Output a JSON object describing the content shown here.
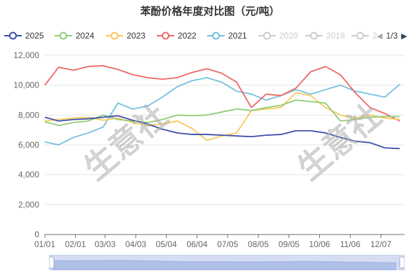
{
  "chart_data": {
    "type": "line",
    "title": "苯酚价格年度对比图（元/吨）",
    "xlabel": "",
    "ylabel": "",
    "ylim": [
      0,
      12000
    ],
    "yticks": [
      "0",
      "2,000",
      "4,000",
      "6,000",
      "8,000",
      "10,000",
      "12,000"
    ],
    "xticks": [
      "01/01",
      "02/01",
      "03/03",
      "04/03",
      "05/04",
      "06/04",
      "07/05",
      "08/05",
      "09/05",
      "10/06",
      "11/06",
      "12/07"
    ],
    "grid": true,
    "legend_position": "top",
    "x": [
      1,
      15,
      30,
      45,
      60,
      75,
      90,
      105,
      120,
      135,
      150,
      165,
      180,
      195,
      210,
      225,
      240,
      255,
      270,
      285,
      300,
      315,
      330,
      345,
      360
    ],
    "series": [
      {
        "name": "2025",
        "color": "#3b4fa8",
        "values": [
          7850,
          7600,
          7700,
          7750,
          7850,
          7950,
          7650,
          7400,
          7050,
          6800,
          6700,
          6700,
          6650,
          6600,
          6550,
          6650,
          6700,
          6950,
          6950,
          6800,
          6500,
          6250,
          6150,
          5800,
          5750
        ]
      },
      {
        "name": "2024",
        "color": "#91cc75",
        "values": [
          7550,
          7300,
          7500,
          7600,
          8000,
          7700,
          7600,
          7500,
          7700,
          8000,
          7950,
          8000,
          8200,
          8400,
          8300,
          8500,
          8650,
          9000,
          8900,
          8800,
          7600,
          7700,
          7850,
          7900,
          7900
        ]
      },
      {
        "name": "2023",
        "color": "#fac858",
        "values": [
          7600,
          7700,
          7800,
          7850,
          7650,
          7800,
          7500,
          7300,
          7400,
          7600,
          7100,
          6300,
          6600,
          6800,
          8300,
          8400,
          8500,
          9500,
          9300,
          8500,
          8000,
          7800,
          8000,
          7800,
          7700
        ]
      },
      {
        "name": "2022",
        "color": "#ee6666",
        "values": [
          10000,
          11200,
          11000,
          11250,
          11300,
          11050,
          10700,
          10500,
          10400,
          10500,
          10850,
          11100,
          10800,
          10200,
          8500,
          9400,
          9300,
          9800,
          10900,
          11250,
          10700,
          9500,
          8500,
          8100,
          7600
        ]
      },
      {
        "name": "2021",
        "color": "#73c0de",
        "values": [
          6200,
          6000,
          6500,
          6800,
          7200,
          8800,
          8400,
          8600,
          9200,
          9900,
          10300,
          10500,
          10200,
          9600,
          9400,
          9000,
          9300,
          9700,
          9400,
          9700,
          10000,
          9600,
          9400,
          9200,
          10050
        ]
      },
      {
        "name": "2020",
        "hidden": true
      },
      {
        "name": "2019",
        "hidden": true
      },
      {
        "name": "2",
        "hidden": true
      }
    ],
    "watermark": "生意社"
  },
  "legend": {
    "page": "1/3"
  }
}
